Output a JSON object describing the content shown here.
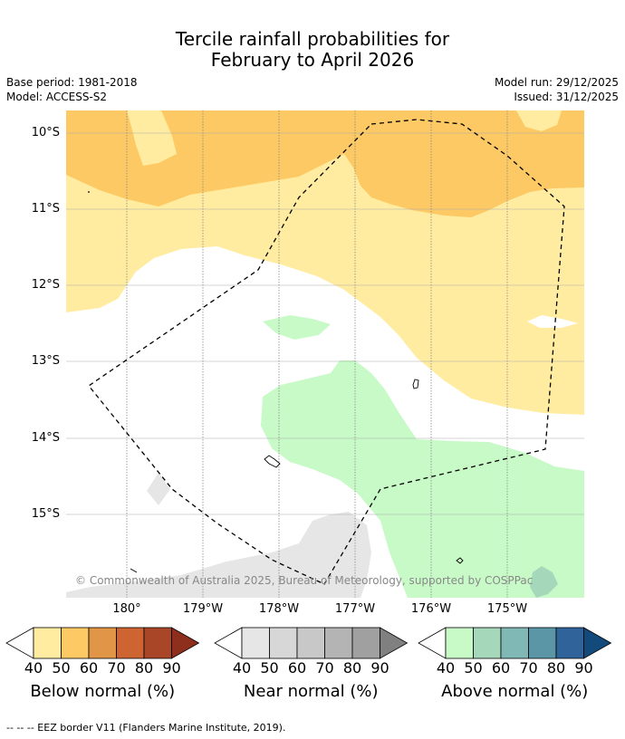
{
  "title_line1": "Tercile rainfall probabilities for",
  "title_line2": "February to April 2026",
  "base_period": "Base period: 1981-2018",
  "model": "Model: ACCESS-S2",
  "model_run": "Model run: 29/12/2025",
  "issued": "Issued: 31/12/2025",
  "lat_labels": [
    "10°S",
    "11°S",
    "12°S",
    "13°S",
    "14°S",
    "15°S"
  ],
  "lon_labels": [
    "180°",
    "179°W",
    "178°W",
    "177°W",
    "176°W",
    "175°W"
  ],
  "copyright": "© Commonwealth of Australia 2025, Bureau of Meteorology, supported by COSPPac",
  "colorbars": [
    {
      "label": "Below normal (%)",
      "ticks": [
        "40",
        "50",
        "60",
        "70",
        "80",
        "90"
      ],
      "colors": [
        "#ffeca0",
        "#fdc964",
        "#e09547",
        "#cd6432",
        "#a94628",
        "#8e2f1d"
      ]
    },
    {
      "label": "Near normal (%)",
      "ticks": [
        "40",
        "50",
        "60",
        "70",
        "80",
        "90"
      ],
      "colors": [
        "#e6e6e6",
        "#d7d7d7",
        "#c8c8c8",
        "#b4b4b4",
        "#a0a0a0",
        "#808080"
      ]
    },
    {
      "label": "Above normal (%)",
      "ticks": [
        "40",
        "50",
        "60",
        "70",
        "80",
        "90"
      ],
      "colors": [
        "#c8fac8",
        "#a5d8bb",
        "#7fb8b4",
        "#5a96a5",
        "#2f6399",
        "#134a7c"
      ]
    }
  ],
  "footer": "--  --  -- EEZ border V11 (Flanders Marine Institute, 2019)."
}
